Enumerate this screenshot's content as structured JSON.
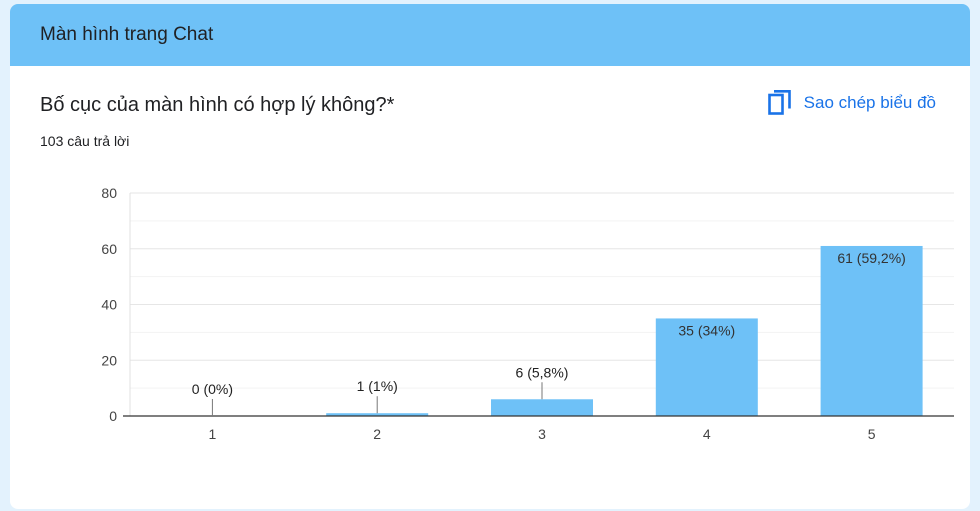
{
  "section": {
    "title": "Màn hình trang Chat"
  },
  "question": {
    "title": "Bố cục của màn hình có hợp lý không?*",
    "response_count": "103 câu trả lời"
  },
  "actions": {
    "copy_chart_label": "Sao chép biểu đồ",
    "copy_icon": "copy-icon"
  },
  "colors": {
    "bar": "#6ec1f7",
    "header": "#6ec1f7",
    "accent": "#1a73e8"
  },
  "chart_data": {
    "type": "bar",
    "categories": [
      "1",
      "2",
      "3",
      "4",
      "5"
    ],
    "values": [
      0,
      1,
      6,
      35,
      61
    ],
    "data_labels": [
      "0 (0%)",
      "1 (1%)",
      "6 (5,8%)",
      "35 (34%)",
      "61 (59,2%)"
    ],
    "yticks": [
      0,
      20,
      40,
      60,
      80
    ],
    "ylim": [
      0,
      80
    ],
    "grid": true,
    "title": "",
    "xlabel": "",
    "ylabel": ""
  }
}
